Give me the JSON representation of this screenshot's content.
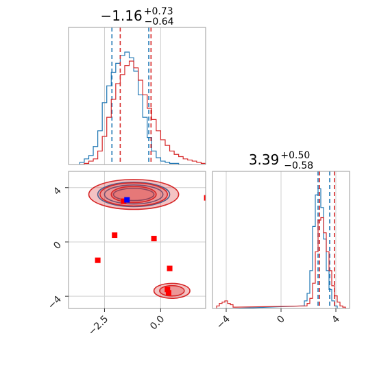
{
  "chart_data": [
    {
      "type": "histogram",
      "panel": "marginal-param-1",
      "title": "−1.16",
      "title_plus": "+0.73",
      "title_minus": "−0.64",
      "xlim": [
        -4.1,
        2.0
      ],
      "grid": true,
      "series": [
        {
          "color": "#1f77b4",
          "bins_x": [
            -3.5,
            -3.3,
            -3.1,
            -2.9,
            -2.7,
            -2.5,
            -2.3,
            -2.1,
            -1.9,
            -1.7,
            -1.5,
            -1.3,
            -1.1,
            -0.9,
            -0.7,
            -0.5,
            -0.3,
            -0.1,
            0.1,
            0.3,
            0.5,
            0.7,
            0.9,
            1.1,
            1.3
          ],
          "density": [
            0.02,
            0.05,
            0.08,
            0.16,
            0.3,
            0.55,
            0.7,
            0.82,
            0.9,
            0.97,
            1.0,
            0.95,
            0.83,
            0.62,
            0.42,
            0.24,
            0.12,
            0.06,
            0.03,
            0.02,
            0.01,
            0.01,
            0.0,
            0.0,
            0.0
          ],
          "quantile_lines": [
            -2.17,
            -0.53
          ]
        },
        {
          "color": "#d62728",
          "bins_x": [
            -3.5,
            -3.3,
            -3.1,
            -2.9,
            -2.7,
            -2.5,
            -2.3,
            -2.1,
            -1.9,
            -1.7,
            -1.5,
            -1.3,
            -1.1,
            -0.9,
            -0.7,
            -0.5,
            -0.3,
            -0.1,
            0.1,
            0.3,
            0.5,
            0.7,
            0.9,
            1.1,
            1.3,
            1.5,
            1.7,
            1.9
          ],
          "density": [
            0.0,
            0.01,
            0.03,
            0.05,
            0.12,
            0.25,
            0.42,
            0.58,
            0.72,
            0.8,
            0.88,
            0.92,
            0.86,
            0.75,
            0.62,
            0.5,
            0.4,
            0.3,
            0.22,
            0.17,
            0.12,
            0.09,
            0.07,
            0.05,
            0.04,
            0.03,
            0.02,
            0.01
          ],
          "quantile_lines": [
            -1.8,
            -0.43
          ]
        }
      ]
    },
    {
      "type": "histogram",
      "panel": "marginal-param-2",
      "title": "3.39",
      "title_plus": "+0.50",
      "title_minus": "−0.58",
      "xlim": [
        -5.0,
        5.0
      ],
      "xticks": [
        "−4",
        "0",
        "4"
      ],
      "xtick_values": [
        -4,
        0,
        4
      ],
      "grid": true,
      "series": [
        {
          "color": "#1f77b4",
          "bins_x": [
            -4.6,
            -4.4,
            -4.2,
            -4.0,
            -3.8,
            -3.6,
            1.6,
            1.8,
            2.0,
            2.2,
            2.4,
            2.6,
            2.8,
            3.0,
            3.2,
            3.4,
            3.6,
            3.8,
            4.0,
            4.2
          ],
          "density": [
            0.0,
            0.0,
            0.0,
            0.0,
            0.0,
            0.0,
            0.02,
            0.06,
            0.12,
            0.3,
            0.65,
            0.9,
            0.95,
            0.8,
            0.55,
            0.3,
            0.15,
            0.06,
            0.02,
            0.0
          ],
          "quantile_lines": [
            2.7,
            3.55
          ]
        },
        {
          "color": "#d62728",
          "bins_x": [
            -4.6,
            -4.4,
            -4.2,
            -4.0,
            -3.8,
            -3.6,
            -3.4,
            1.8,
            2.0,
            2.2,
            2.4,
            2.6,
            2.8,
            3.0,
            3.2,
            3.4,
            3.6,
            3.8,
            4.0,
            4.2,
            4.4,
            4.6
          ],
          "density": [
            0.02,
            0.04,
            0.05,
            0.06,
            0.04,
            0.03,
            0.01,
            0.02,
            0.04,
            0.08,
            0.2,
            0.45,
            0.7,
            0.72,
            0.6,
            0.45,
            0.3,
            0.18,
            0.1,
            0.05,
            0.02,
            0.01
          ],
          "quantile_lines": [
            2.81,
            3.89
          ]
        }
      ]
    },
    {
      "type": "scatter",
      "panel": "joint-param-1-vs-param-2",
      "xlim": [
        -4.1,
        2.0
      ],
      "ylim": [
        -4.9,
        5.2
      ],
      "xticks": [
        "−2.5",
        "0.0"
      ],
      "xtick_values": [
        -2.5,
        0.0
      ],
      "yticks": [
        "4",
        "0",
        "−4"
      ],
      "ytick_values": [
        4,
        0,
        -4
      ],
      "grid": true,
      "contours": [
        {
          "color": "#1f77b4",
          "center": [
            -1.2,
            3.5
          ],
          "levels": [
            [
              1.6,
              0.9
            ],
            [
              1.3,
              0.7
            ],
            [
              0.9,
              0.45
            ]
          ]
        },
        {
          "color": "#d62728",
          "center": [
            -1.2,
            3.5
          ],
          "levels": [
            [
              2.0,
              1.1
            ],
            [
              1.5,
              0.85
            ],
            [
              1.0,
              0.6
            ]
          ]
        },
        {
          "color": "#d62728",
          "center": [
            0.5,
            -3.6
          ],
          "levels": [
            [
              0.8,
              0.55
            ],
            [
              0.55,
              0.38
            ]
          ]
        }
      ],
      "markers": [
        {
          "color": "#ff0000",
          "x": -1.65,
          "y": 3.0
        },
        {
          "color": "#0000ff",
          "x": -1.5,
          "y": 3.1
        },
        {
          "color": "#ff0000",
          "x": -2.05,
          "y": 0.5
        },
        {
          "color": "#ff0000",
          "x": -0.3,
          "y": 0.25
        },
        {
          "color": "#ff0000",
          "x": -2.8,
          "y": -1.35
        },
        {
          "color": "#ff0000",
          "x": 0.4,
          "y": -1.95
        },
        {
          "color": "#ff0000",
          "x": 0.3,
          "y": -3.5
        },
        {
          "color": "#ff0000",
          "x": 0.35,
          "y": -3.75
        },
        {
          "color": "#ff0000",
          "x": 2.05,
          "y": 3.25
        }
      ]
    }
  ]
}
